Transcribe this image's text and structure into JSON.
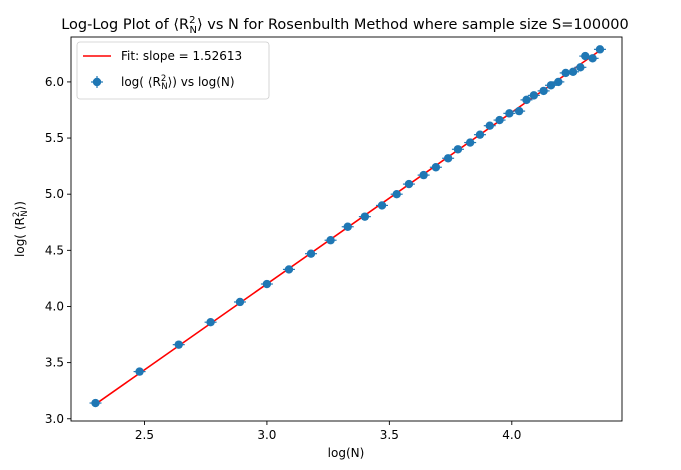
{
  "chart_data": {
    "type": "scatter",
    "title": "Log-Log Plot of ⟨R",
    "title_sup": "2",
    "title_sub": "N",
    "title_rest": "⟩ vs N for Rosenbulth Method where sample size S=100000",
    "xlabel": "log(N)",
    "ylabel": "log( ⟨R",
    "ylabel_sup": "2",
    "ylabel_sub": "N",
    "ylabel_rest": "⟩)",
    "xlim": [
      2.2,
      4.45
    ],
    "ylim": [
      2.98,
      6.4
    ],
    "x_ticks": [
      "2.5",
      "3.0",
      "3.5",
      "4.0"
    ],
    "y_ticks": [
      "3.0",
      "3.5",
      "4.0",
      "4.5",
      "5.0",
      "5.5",
      "6.0"
    ],
    "grid": false,
    "legend_position": "top-left",
    "series": [
      {
        "name": "Fit: slope = 1.52613",
        "type": "line",
        "color": "#ff0000",
        "x": [
          2.3,
          4.36
        ],
        "y": [
          3.13,
          6.28
        ]
      },
      {
        "name": "log( ⟨R",
        "name_sup": "2",
        "name_sub": "N",
        "name_rest": "⟩) vs log(N)",
        "type": "scatter_errorbar",
        "color": "#1f77b4",
        "x": [
          2.3,
          2.48,
          2.64,
          2.77,
          2.89,
          3.0,
          3.09,
          3.18,
          3.26,
          3.33,
          3.4,
          3.47,
          3.53,
          3.58,
          3.64,
          3.69,
          3.74,
          3.78,
          3.83,
          3.87,
          3.91,
          3.95,
          3.99,
          4.03,
          4.06,
          4.09,
          4.13,
          4.16,
          4.19,
          4.22,
          4.25,
          4.28,
          4.3,
          4.33,
          4.36
        ],
        "y": [
          3.14,
          3.42,
          3.66,
          3.86,
          4.04,
          4.2,
          4.33,
          4.47,
          4.59,
          4.71,
          4.8,
          4.9,
          5.0,
          5.09,
          5.17,
          5.24,
          5.32,
          5.4,
          5.46,
          5.53,
          5.61,
          5.66,
          5.72,
          5.74,
          5.84,
          5.88,
          5.92,
          5.97,
          6.0,
          6.08,
          6.09,
          6.13,
          6.23,
          6.21,
          6.29
        ]
      }
    ]
  }
}
